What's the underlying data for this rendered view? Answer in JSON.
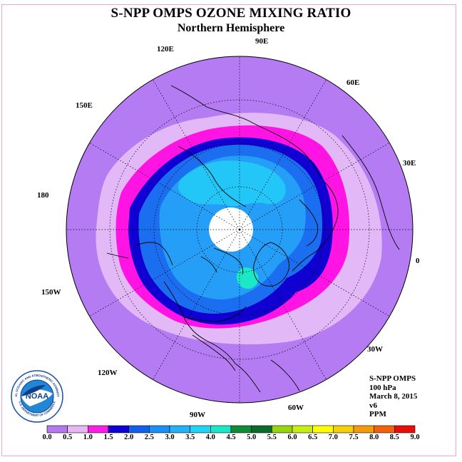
{
  "title": "S-NPP OMPS OZONE MIXING RATIO",
  "subtitle": "Northern Hemisphere",
  "longitude_labels": [
    "120E",
    "90E",
    "60E",
    "150E",
    "30E",
    "180",
    "0",
    "150W",
    "30W",
    "120W",
    "60W",
    "90W"
  ],
  "info": {
    "instrument": "S-NPP OMPS",
    "level": "100 hPa",
    "date": "March 8, 2015",
    "version": "v6",
    "units": "PPM"
  },
  "colorbar": {
    "ticks": [
      "0.0",
      "0.5",
      "1.0",
      "1.5",
      "2.0",
      "2.5",
      "3.0",
      "3.5",
      "4.0",
      "4.5",
      "5.0",
      "5.5",
      "6.0",
      "6.5",
      "7.0",
      "7.5",
      "8.0",
      "8.5",
      "9.0"
    ],
    "colors": [
      "#b678f0",
      "#e6b6f5",
      "#ff1ce8",
      "#0c00d6",
      "#1060ee",
      "#1a90f6",
      "#22b2f6",
      "#20d4f6",
      "#1ae8c6",
      "#118b37",
      "#0a6b2a",
      "#9ad40c",
      "#c8ee10",
      "#ffff00",
      "#f5cf08",
      "#f59b0a",
      "#f3610a",
      "#eb0e08",
      "#7a4834"
    ]
  },
  "logo": {
    "text": "NOAA",
    "ring_text": "NATIONAL OCEANIC AND ATMOSPHERIC ADMINISTRATION",
    "ring_text_bottom": "U.S. DEPARTMENT OF COMMERCE"
  },
  "map_colors": {
    "outer": "#b57bf2",
    "band_light": "#e3b8f6",
    "band_magenta": "#ff14e4",
    "band_blue": "#1000d2",
    "inner_mid": "#1b6ef0",
    "inner_light": "#249ef7",
    "inner_cyan": "#22c6f7",
    "pole": "#ffffff"
  }
}
